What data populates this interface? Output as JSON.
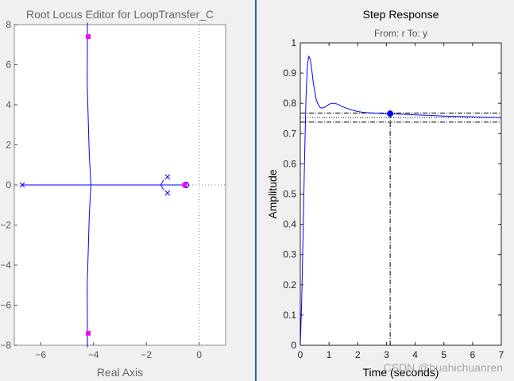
{
  "root_locus": {
    "title": "Root Locus Editor for LoopTransfer_C",
    "xlabel": "Real Axis"
  },
  "step_response": {
    "title": "Step Response",
    "subtitle": "From: r  To: y",
    "ylabel": "Amplitude",
    "xlabel": "Time (seconds)"
  },
  "watermark": "CSDN @huahichuanren",
  "colors": {
    "locus": "#0000ff",
    "marker": "#ff00ff",
    "grid": "#777777"
  },
  "chart_data": [
    {
      "type": "line",
      "title": "Root Locus Editor for LoopTransfer_C",
      "xlabel": "Real Axis",
      "ylabel": "",
      "xlim": [
        -7,
        1
      ],
      "ylim": [
        -8,
        8
      ],
      "xticks": [
        -6,
        -4,
        -2,
        0
      ],
      "yticks": [
        -8,
        -6,
        -4,
        -2,
        0,
        2,
        4,
        6,
        8
      ],
      "series": [
        {
          "values": [
            [
              -6.7,
              0
            ],
            [
              -0.5,
              0
            ]
          ]
        },
        {
          "values": [
            [
              -4.23,
              8.1
            ],
            [
              -4.24,
              5
            ],
            [
              -4.16,
              1.5
            ],
            [
              -4.1,
              0
            ],
            [
              -4.16,
              -1.5
            ],
            [
              -4.24,
              -5
            ],
            [
              -4.23,
              -8.1
            ]
          ]
        },
        {
          "values": [
            [
              -1.35,
              0.25
            ],
            [
              -1.45,
              0
            ],
            [
              -1.35,
              -0.25
            ]
          ]
        }
      ],
      "poles": [
        [
          -6.7,
          0
        ],
        [
          -1.2,
          0.4
        ],
        [
          -1.2,
          -0.4
        ]
      ],
      "zeros": [
        [
          -0.5,
          0
        ]
      ],
      "closed_loop_poles": [
        [
          -4.2,
          7.4
        ],
        [
          -4.2,
          -7.4
        ],
        [
          -0.55,
          0
        ]
      ],
      "reference_line": {
        "x": 0
      }
    },
    {
      "type": "line",
      "title": "Step Response",
      "subtitle": "From: r  To: y",
      "xlabel": "Time (seconds)",
      "ylabel": "Amplitude",
      "xlim": [
        0,
        7
      ],
      "ylim": [
        0,
        1
      ],
      "xticks": [
        0,
        1,
        2,
        3,
        4,
        5,
        6,
        7
      ],
      "yticks": [
        0,
        0.1,
        0.2,
        0.3,
        0.4,
        0.5,
        0.6,
        0.7,
        0.8,
        0.9,
        1
      ],
      "series": [
        {
          "x": [
            0,
            0.05,
            0.1,
            0.15,
            0.2,
            0.25,
            0.3,
            0.35,
            0.4,
            0.45,
            0.5,
            0.55,
            0.6,
            0.7,
            0.8,
            0.9,
            1.0,
            1.1,
            1.2,
            1.3,
            1.4,
            1.6,
            1.8,
            2.0,
            2.2,
            2.5,
            3.0,
            3.13,
            3.5,
            4.0,
            4.5,
            5.0,
            6.0,
            7.0
          ],
          "y": [
            0,
            0.15,
            0.38,
            0.62,
            0.82,
            0.93,
            0.955,
            0.945,
            0.91,
            0.87,
            0.84,
            0.815,
            0.8,
            0.785,
            0.785,
            0.79,
            0.797,
            0.8,
            0.8,
            0.797,
            0.792,
            0.784,
            0.778,
            0.773,
            0.77,
            0.768,
            0.766,
            0.766,
            0.764,
            0.762,
            0.76,
            0.758,
            0.755,
            0.753
          ]
        }
      ],
      "settling_marker": {
        "x": 3.13,
        "y": 0.766
      },
      "final_value": 0.753,
      "settling_band": [
        0.738,
        0.768
      ]
    }
  ]
}
